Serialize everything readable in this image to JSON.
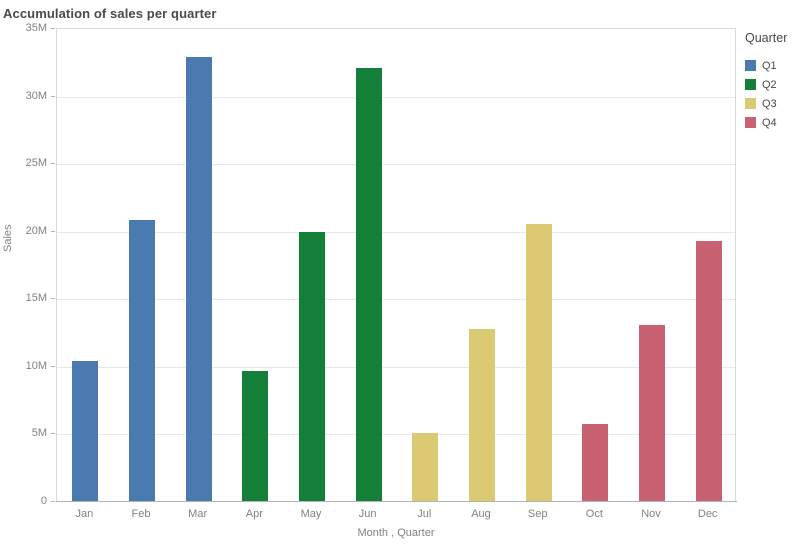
{
  "title": "Accumulation of sales per quarter",
  "colors": {
    "q1": "#4a7bb0",
    "q2": "#147f39",
    "q3": "#dbca73",
    "q4": "#c86273",
    "gridline": "#e8e8e8",
    "plot_border": "#d9d9d9",
    "axis_line": "#b3b3b3",
    "title_text": "#4a4a4a",
    "axis_text": "#828282"
  },
  "legend": {
    "title": "Quarter",
    "items": [
      {
        "label": "Q1",
        "color": "#4a7bb0"
      },
      {
        "label": "Q2",
        "color": "#147f39"
      },
      {
        "label": "Q3",
        "color": "#dbca73"
      },
      {
        "label": "Q4",
        "color": "#c86273"
      }
    ]
  },
  "chart_data": {
    "type": "bar",
    "title": "Accumulation of sales per quarter",
    "xlabel": "Month , Quarter",
    "ylabel": "Sales",
    "unit": "millions",
    "ylim_m": [
      0,
      35
    ],
    "y_tick_step_m": 5,
    "y_ticks": [
      "0",
      "5M",
      "10M",
      "15M",
      "20M",
      "25M",
      "30M",
      "35M"
    ],
    "grid": true,
    "legend_position": "top-right",
    "categories": [
      "Jan",
      "Feb",
      "Mar",
      "Apr",
      "May",
      "Jun",
      "Jul",
      "Aug",
      "Sep",
      "Oct",
      "Nov",
      "Dec"
    ],
    "points": [
      {
        "month": "Jan",
        "quarter": "Q1",
        "value_m": 10.4
      },
      {
        "month": "Feb",
        "quarter": "Q1",
        "value_m": 20.9
      },
      {
        "month": "Mar",
        "quarter": "Q1",
        "value_m": 32.9
      },
      {
        "month": "Apr",
        "quarter": "Q2",
        "value_m": 9.7
      },
      {
        "month": "May",
        "quarter": "Q2",
        "value_m": 20.0
      },
      {
        "month": "Jun",
        "quarter": "Q2",
        "value_m": 32.1
      },
      {
        "month": "Jul",
        "quarter": "Q3",
        "value_m": 5.1
      },
      {
        "month": "Aug",
        "quarter": "Q3",
        "value_m": 12.8
      },
      {
        "month": "Sep",
        "quarter": "Q3",
        "value_m": 20.6
      },
      {
        "month": "Oct",
        "quarter": "Q4",
        "value_m": 5.8
      },
      {
        "month": "Nov",
        "quarter": "Q4",
        "value_m": 13.1
      },
      {
        "month": "Dec",
        "quarter": "Q4",
        "value_m": 19.3
      }
    ]
  }
}
